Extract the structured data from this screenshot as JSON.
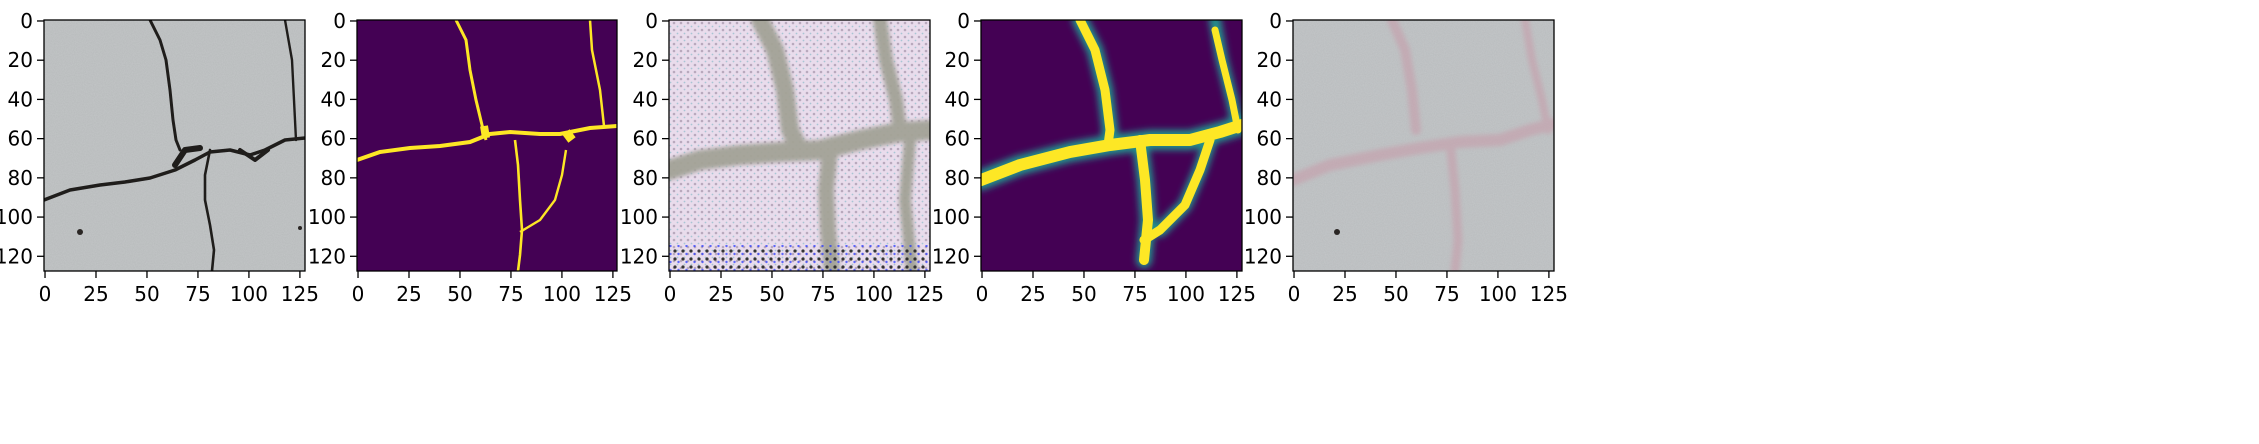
{
  "figure": {
    "panels": [
      {
        "kind": "photo-crack",
        "x_ticks": [
          "0",
          "25",
          "50",
          "75",
          "100",
          "125"
        ],
        "y_ticks": [
          "0",
          "20",
          "40",
          "60",
          "80",
          "100",
          "120"
        ]
      },
      {
        "kind": "binary-mask",
        "x_ticks": [
          "0",
          "25",
          "50",
          "75",
          "100",
          "125"
        ],
        "y_ticks": [
          "0",
          "20",
          "40",
          "60",
          "80",
          "100",
          "120"
        ]
      },
      {
        "kind": "noisy-feature-map",
        "x_ticks": [
          "0",
          "25",
          "50",
          "75",
          "100",
          "125"
        ],
        "y_ticks": [
          "0",
          "20",
          "40",
          "60",
          "80",
          "100",
          "120"
        ]
      },
      {
        "kind": "smooth-prediction",
        "x_ticks": [
          "0",
          "25",
          "50",
          "75",
          "100",
          "125"
        ],
        "y_ticks": [
          "0",
          "20",
          "40",
          "60",
          "80",
          "100",
          "120"
        ]
      },
      {
        "kind": "photo-overlay",
        "x_ticks": [
          "0",
          "25",
          "50",
          "75",
          "100",
          "125"
        ],
        "y_ticks": [
          "0",
          "20",
          "40",
          "60",
          "80",
          "100",
          "120"
        ]
      }
    ],
    "colors": {
      "concrete": "#b9bcbd",
      "crack_dark": "#1f1d1b",
      "viridis_bg": "#440154",
      "viridis_fg": "#fde725",
      "viridis_mid": "#21918c",
      "overlay_pink": "#c79aa8"
    }
  }
}
